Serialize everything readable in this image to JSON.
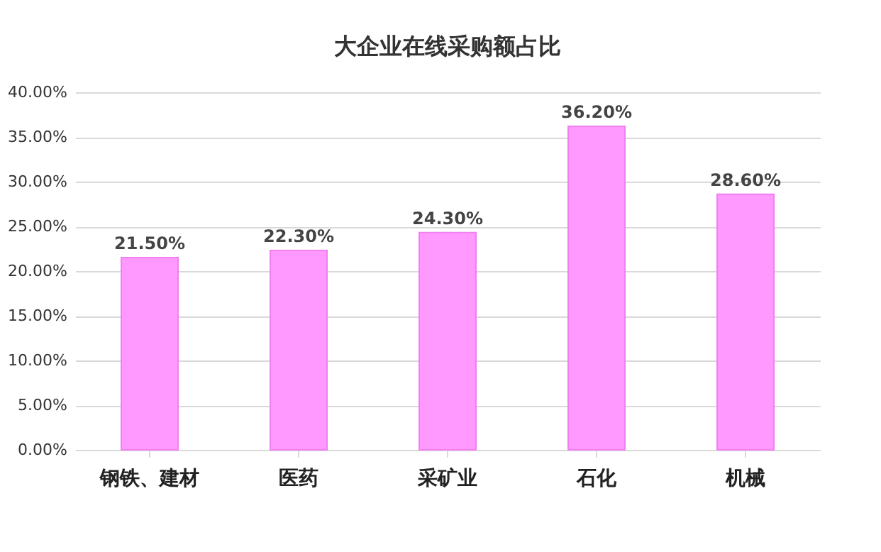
{
  "chart_data": {
    "type": "bar",
    "title": "大企业在线采购额占比",
    "categories": [
      "钢铁、建材",
      "医药",
      "采矿业",
      "石化",
      "机械"
    ],
    "values": [
      21.5,
      22.3,
      24.3,
      36.2,
      28.6
    ],
    "value_labels": [
      "21.50%",
      "22.30%",
      "24.30%",
      "36.20%",
      "28.60%"
    ],
    "color": "#ff99ff",
    "ylim": [
      0,
      40
    ],
    "yticks": [
      {
        "value": 0,
        "label": "0.00%"
      },
      {
        "value": 5,
        "label": "5.00%"
      },
      {
        "value": 10,
        "label": "10.00%"
      },
      {
        "value": 15,
        "label": "15.00%"
      },
      {
        "value": 20,
        "label": "20.00%"
      },
      {
        "value": 25,
        "label": "25.00%"
      },
      {
        "value": 30,
        "label": "30.00%"
      },
      {
        "value": 35,
        "label": "35.00%"
      },
      {
        "value": 40,
        "label": "40.00%"
      }
    ],
    "grid": "y"
  }
}
